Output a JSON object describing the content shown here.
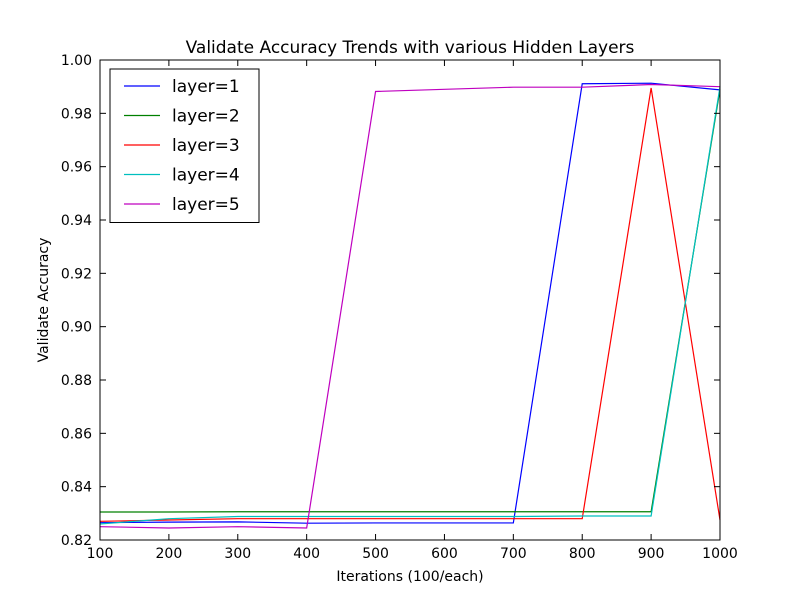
{
  "chart_data": {
    "type": "line",
    "title": "Validate Accuracy Trends with various Hidden Layers",
    "xlabel": "Iterations (100/each)",
    "ylabel": "Validate Accuracy",
    "xlim": [
      100,
      1000
    ],
    "ylim": [
      0.82,
      1.0
    ],
    "x_ticks": [
      100,
      200,
      300,
      400,
      500,
      600,
      700,
      800,
      900,
      1000
    ],
    "y_ticks": [
      0.82,
      0.84,
      0.86,
      0.88,
      0.9,
      0.92,
      0.94,
      0.96,
      0.98,
      1.0
    ],
    "y_tick_labels": [
      "0.82",
      "0.84",
      "0.86",
      "0.88",
      "0.90",
      "0.92",
      "0.94",
      "0.96",
      "0.98",
      "1.00"
    ],
    "grid": false,
    "legend_position": "top-left",
    "x": [
      100,
      200,
      300,
      400,
      500,
      600,
      700,
      800,
      900,
      1000
    ],
    "series": [
      {
        "name": "layer=1",
        "color": "#0000ff",
        "values": [
          0.8265,
          0.8267,
          0.8268,
          0.8263,
          0.8264,
          0.8264,
          0.8264,
          0.9911,
          0.9913,
          0.9888
        ]
      },
      {
        "name": "layer=2",
        "color": "#008000",
        "values": [
          0.8305,
          0.8305,
          0.8306,
          0.8306,
          0.8306,
          0.8306,
          0.8306,
          0.8306,
          0.8306,
          0.989
        ]
      },
      {
        "name": "layer=3",
        "color": "#ff0000",
        "values": [
          0.827,
          0.8275,
          0.828,
          0.828,
          0.828,
          0.828,
          0.828,
          0.828,
          0.9895,
          0.8275
        ]
      },
      {
        "name": "layer=4",
        "color": "#00bfbf",
        "values": [
          0.826,
          0.828,
          0.8288,
          0.8288,
          0.8288,
          0.8288,
          0.8288,
          0.829,
          0.829,
          0.99
        ]
      },
      {
        "name": "layer=5",
        "color": "#bf00bf",
        "values": [
          0.825,
          0.8245,
          0.825,
          0.8245,
          0.9882,
          0.989,
          0.9898,
          0.9898,
          0.9908,
          0.99
        ]
      }
    ]
  }
}
